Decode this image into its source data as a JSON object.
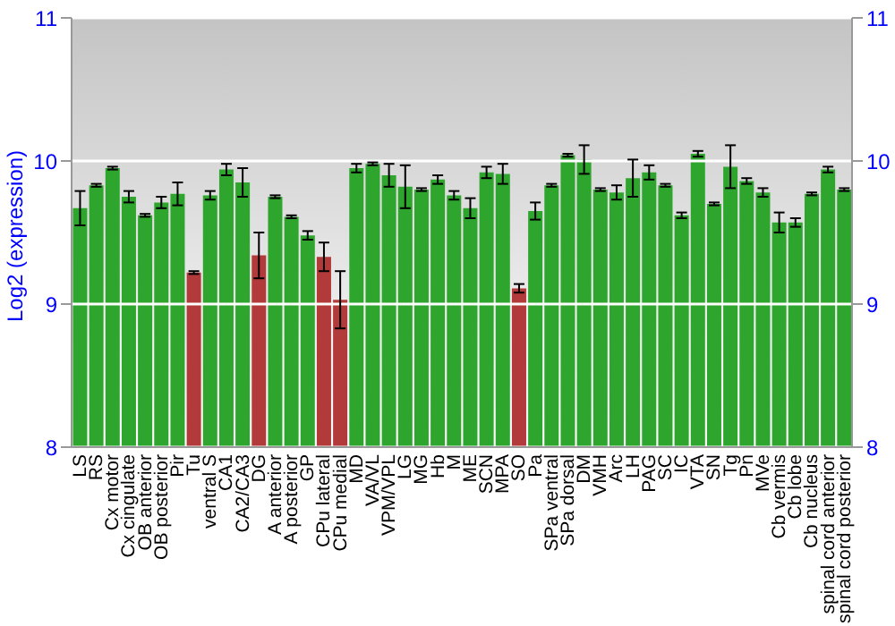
{
  "chart_data": {
    "type": "bar",
    "ylabel": "Log2 (expression)",
    "categories": [
      "LS",
      "RS",
      "Cx motor",
      "Cx cingulate",
      "OB anterior",
      "OB posterior",
      "Pir",
      "Tu",
      "ventral S",
      "CA1",
      "CA2/CA3",
      "DG",
      "A anterior",
      "A posterior",
      "GP",
      "CPu lateral",
      "CPu medial",
      "MD",
      "VA/VL",
      "VPM/VPL",
      "LG",
      "MG",
      "Hb",
      "M",
      "ME",
      "SCN",
      "MPA",
      "SO",
      "Pa",
      "SPa ventral",
      "SPa dorsal",
      "DM",
      "VMH",
      "Arc",
      "LH",
      "PAG",
      "SC",
      "IC",
      "VTA",
      "SN",
      "Tg",
      "Pn",
      "MVe",
      "Cb vermis",
      "Cb lobe",
      "Cb nucleus",
      "spinal cord anterior",
      "spinal cord posterior"
    ],
    "values": [
      9.67,
      9.83,
      9.95,
      9.75,
      9.62,
      9.71,
      9.77,
      9.22,
      9.76,
      9.94,
      9.85,
      9.34,
      9.75,
      9.61,
      9.48,
      9.33,
      9.03,
      9.95,
      9.98,
      9.9,
      9.82,
      9.8,
      9.87,
      9.76,
      9.67,
      9.92,
      9.91,
      9.11,
      9.65,
      9.83,
      10.04,
      10.01,
      9.8,
      9.78,
      9.88,
      9.92,
      9.83,
      9.62,
      10.05,
      9.7,
      9.96,
      9.86,
      9.78,
      9.57,
      9.57,
      9.77,
      9.94,
      9.8
    ],
    "errors": [
      0.12,
      0.01,
      0.01,
      0.04,
      0.01,
      0.04,
      0.08,
      0.01,
      0.03,
      0.04,
      0.1,
      0.16,
      0.01,
      0.01,
      0.03,
      0.1,
      0.2,
      0.03,
      0.01,
      0.08,
      0.15,
      0.01,
      0.03,
      0.03,
      0.07,
      0.04,
      0.07,
      0.03,
      0.06,
      0.01,
      0.01,
      0.1,
      0.01,
      0.05,
      0.13,
      0.05,
      0.01,
      0.02,
      0.02,
      0.01,
      0.15,
      0.02,
      0.03,
      0.07,
      0.03,
      0.01,
      0.02,
      0.01
    ],
    "colors": [
      "#2ea62e",
      "#2ea62e",
      "#2ea62e",
      "#2ea62e",
      "#2ea62e",
      "#2ea62e",
      "#2ea62e",
      "#b33a3a",
      "#2ea62e",
      "#2ea62e",
      "#2ea62e",
      "#b33a3a",
      "#2ea62e",
      "#2ea62e",
      "#2ea62e",
      "#b33a3a",
      "#b33a3a",
      "#2ea62e",
      "#2ea62e",
      "#2ea62e",
      "#2ea62e",
      "#2ea62e",
      "#2ea62e",
      "#2ea62e",
      "#2ea62e",
      "#2ea62e",
      "#2ea62e",
      "#b33a3a",
      "#2ea62e",
      "#2ea62e",
      "#2ea62e",
      "#2ea62e",
      "#2ea62e",
      "#2ea62e",
      "#2ea62e",
      "#2ea62e",
      "#2ea62e",
      "#2ea62e",
      "#2ea62e",
      "#2ea62e",
      "#2ea62e",
      "#2ea62e",
      "#2ea62e",
      "#2ea62e",
      "#2ea62e",
      "#2ea62e",
      "#2ea62e",
      "#2ea62e"
    ],
    "ylim": [
      8,
      11
    ],
    "yticks": [
      8,
      9,
      10,
      11
    ],
    "y2lim": [
      8,
      11
    ],
    "y2ticks": [
      8,
      9,
      10,
      11
    ],
    "grid": "y"
  }
}
